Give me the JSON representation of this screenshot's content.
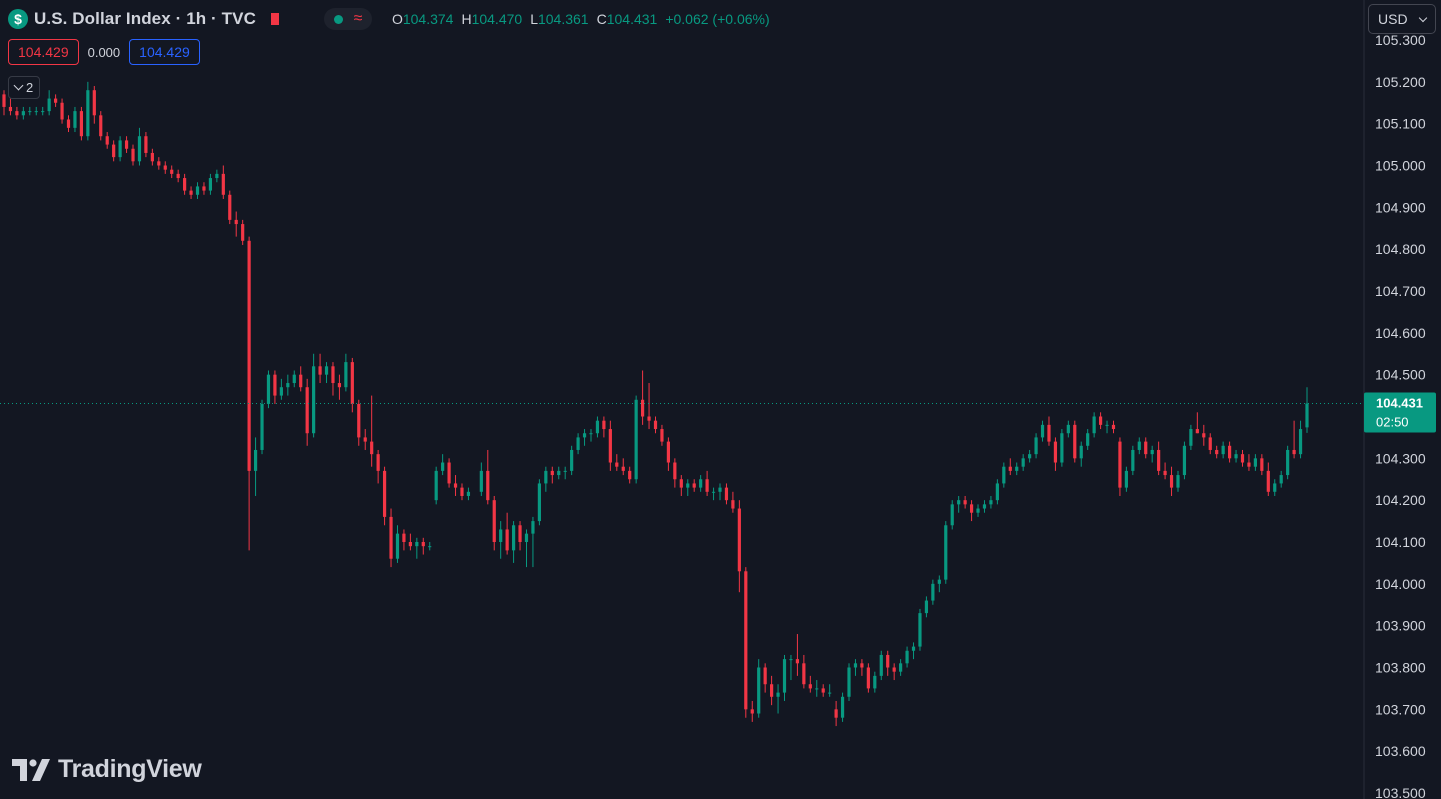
{
  "header": {
    "symbol_icon_text": "$",
    "title": "U.S. Dollar Index · 1h · TVC",
    "ohlc": [
      {
        "label": "O",
        "value": "104.374"
      },
      {
        "label": "H",
        "value": "104.470"
      },
      {
        "label": "L",
        "value": "104.361"
      },
      {
        "label": "C",
        "value": "104.431"
      },
      {
        "label": "",
        "value": "+0.062 (+0.06%)"
      }
    ],
    "approx_symbol": "≈"
  },
  "quotes": {
    "bid": "104.429",
    "spread": "0.000",
    "ask": "104.429"
  },
  "indicators_toggle": {
    "count": "2"
  },
  "currency": {
    "selected": "USD"
  },
  "branding": {
    "logo_text": "TradingView"
  },
  "colors": {
    "background": "#131722",
    "up": "#089981",
    "down": "#f23645",
    "axis_text": "#d1d4dc",
    "ask": "#2962ff"
  },
  "chart_data": {
    "type": "candlestick",
    "title": "U.S. Dollar Index · 1h · TVC",
    "ylim": [
      103.5,
      105.3
    ],
    "y_ticks": [
      "105.300",
      "105.200",
      "105.100",
      "105.000",
      "104.900",
      "104.800",
      "104.700",
      "104.600",
      "104.500",
      "104.400",
      "104.300",
      "104.200",
      "104.100",
      "104.000",
      "103.900",
      "103.800",
      "103.700",
      "103.600",
      "103.500"
    ],
    "last_price": {
      "value": 104.431,
      "label": "104.431",
      "countdown": "02:50"
    },
    "gap_after_index": 72,
    "candles": [
      [
        105.17,
        105.18,
        105.12,
        105.14
      ],
      [
        105.14,
        105.16,
        105.12,
        105.13
      ],
      [
        105.13,
        105.14,
        105.11,
        105.12
      ],
      [
        105.12,
        105.14,
        105.11,
        105.13
      ],
      [
        105.13,
        105.14,
        105.12,
        105.13
      ],
      [
        105.13,
        105.14,
        105.12,
        105.13
      ],
      [
        105.13,
        105.14,
        105.12,
        105.13
      ],
      [
        105.13,
        105.18,
        105.12,
        105.16
      ],
      [
        105.16,
        105.17,
        105.14,
        105.15
      ],
      [
        105.15,
        105.16,
        105.1,
        105.11
      ],
      [
        105.11,
        105.12,
        105.08,
        105.09
      ],
      [
        105.09,
        105.14,
        105.08,
        105.13
      ],
      [
        105.13,
        105.14,
        105.06,
        105.07
      ],
      [
        105.07,
        105.2,
        105.06,
        105.18
      ],
      [
        105.18,
        105.19,
        105.1,
        105.12
      ],
      [
        105.12,
        105.13,
        105.06,
        105.07
      ],
      [
        105.07,
        105.08,
        105.04,
        105.05
      ],
      [
        105.05,
        105.06,
        105.01,
        105.02
      ],
      [
        105.02,
        105.07,
        105.01,
        105.06
      ],
      [
        105.06,
        105.07,
        105.03,
        105.04
      ],
      [
        105.04,
        105.05,
        105.0,
        105.01
      ],
      [
        105.01,
        105.09,
        105.0,
        105.07
      ],
      [
        105.07,
        105.08,
        105.02,
        105.03
      ],
      [
        105.03,
        105.04,
        105.0,
        105.01
      ],
      [
        105.01,
        105.02,
        104.99,
        105.0
      ],
      [
        105.0,
        105.01,
        104.98,
        104.99
      ],
      [
        104.99,
        105.0,
        104.97,
        104.98
      ],
      [
        104.98,
        104.99,
        104.96,
        104.97
      ],
      [
        104.97,
        104.98,
        104.93,
        104.94
      ],
      [
        104.94,
        104.95,
        104.92,
        104.93
      ],
      [
        104.93,
        104.96,
        104.92,
        104.95
      ],
      [
        104.95,
        104.96,
        104.93,
        104.94
      ],
      [
        104.94,
        104.98,
        104.93,
        104.97
      ],
      [
        104.97,
        104.99,
        104.96,
        104.98
      ],
      [
        104.98,
        105.0,
        104.92,
        104.93
      ],
      [
        104.93,
        104.94,
        104.86,
        104.87
      ],
      [
        104.87,
        104.89,
        104.83,
        104.86
      ],
      [
        104.86,
        104.87,
        104.81,
        104.82
      ],
      [
        104.82,
        104.83,
        104.08,
        104.27
      ],
      [
        104.27,
        104.35,
        104.21,
        104.32
      ],
      [
        104.32,
        104.44,
        104.31,
        104.43
      ],
      [
        104.43,
        104.51,
        104.42,
        104.5
      ],
      [
        104.5,
        104.51,
        104.43,
        104.45
      ],
      [
        104.45,
        104.49,
        104.44,
        104.47
      ],
      [
        104.47,
        104.5,
        104.45,
        104.48
      ],
      [
        104.48,
        104.51,
        104.47,
        104.5
      ],
      [
        104.5,
        104.52,
        104.46,
        104.47
      ],
      [
        104.47,
        104.49,
        104.33,
        104.36
      ],
      [
        104.36,
        104.55,
        104.35,
        104.52
      ],
      [
        104.52,
        104.55,
        104.48,
        104.5
      ],
      [
        104.5,
        104.53,
        104.48,
        104.52
      ],
      [
        104.52,
        104.53,
        104.45,
        104.48
      ],
      [
        104.48,
        104.5,
        104.44,
        104.47
      ],
      [
        104.47,
        104.55,
        104.46,
        104.53
      ],
      [
        104.53,
        104.54,
        104.41,
        104.43
      ],
      [
        104.43,
        104.44,
        104.33,
        104.35
      ],
      [
        104.35,
        104.37,
        104.32,
        104.34
      ],
      [
        104.34,
        104.45,
        104.28,
        104.31
      ],
      [
        104.31,
        104.32,
        104.24,
        104.27
      ],
      [
        104.27,
        104.28,
        104.14,
        104.16
      ],
      [
        104.16,
        104.18,
        104.04,
        104.06
      ],
      [
        104.06,
        104.14,
        104.05,
        104.12
      ],
      [
        104.12,
        104.13,
        104.08,
        104.1
      ],
      [
        104.1,
        104.12,
        104.08,
        104.09
      ],
      [
        104.09,
        104.11,
        104.06,
        104.1
      ],
      [
        104.1,
        104.11,
        104.07,
        104.09
      ],
      [
        104.09,
        104.1,
        104.08,
        104.09
      ],
      [
        104.2,
        104.28,
        104.19,
        104.27
      ],
      [
        104.27,
        104.31,
        104.26,
        104.29
      ],
      [
        104.29,
        104.3,
        104.23,
        104.24
      ],
      [
        104.24,
        104.26,
        104.21,
        104.23
      ],
      [
        104.23,
        104.24,
        104.2,
        104.21
      ],
      [
        104.21,
        104.23,
        104.2,
        104.22
      ],
      [
        104.22,
        104.29,
        104.21,
        104.27
      ],
      [
        104.27,
        104.32,
        104.19,
        104.2
      ],
      [
        104.2,
        104.21,
        104.08,
        104.1
      ],
      [
        104.1,
        104.15,
        104.06,
        104.13
      ],
      [
        104.13,
        104.17,
        104.07,
        104.08
      ],
      [
        104.08,
        104.15,
        104.05,
        104.14
      ],
      [
        104.14,
        104.15,
        104.08,
        104.1
      ],
      [
        104.1,
        104.13,
        104.04,
        104.12
      ],
      [
        104.12,
        104.16,
        104.04,
        104.15
      ],
      [
        104.15,
        104.25,
        104.14,
        104.24
      ],
      [
        104.24,
        104.28,
        104.22,
        104.27
      ],
      [
        104.27,
        104.28,
        104.24,
        104.26
      ],
      [
        104.26,
        104.28,
        104.25,
        104.27
      ],
      [
        104.27,
        104.28,
        104.25,
        104.27
      ],
      [
        104.27,
        104.33,
        104.26,
        104.32
      ],
      [
        104.32,
        104.36,
        104.31,
        104.35
      ],
      [
        104.35,
        104.37,
        104.33,
        104.36
      ],
      [
        104.36,
        104.37,
        104.34,
        104.36
      ],
      [
        104.36,
        104.4,
        104.35,
        104.39
      ],
      [
        104.39,
        104.4,
        104.35,
        104.37
      ],
      [
        104.37,
        104.39,
        104.27,
        104.29
      ],
      [
        104.29,
        104.31,
        104.27,
        104.28
      ],
      [
        104.28,
        104.3,
        104.26,
        104.27
      ],
      [
        104.27,
        104.28,
        104.24,
        104.25
      ],
      [
        104.25,
        104.45,
        104.24,
        104.44
      ],
      [
        104.44,
        104.51,
        104.38,
        104.4
      ],
      [
        104.4,
        104.48,
        104.37,
        104.39
      ],
      [
        104.39,
        104.4,
        104.36,
        104.37
      ],
      [
        104.37,
        104.38,
        104.33,
        104.34
      ],
      [
        104.34,
        104.35,
        104.27,
        104.29
      ],
      [
        104.29,
        104.3,
        104.23,
        104.25
      ],
      [
        104.25,
        104.26,
        104.21,
        104.23
      ],
      [
        104.23,
        104.25,
        104.21,
        104.24
      ],
      [
        104.24,
        104.25,
        104.22,
        104.23
      ],
      [
        104.23,
        104.26,
        104.22,
        104.25
      ],
      [
        104.25,
        104.27,
        104.21,
        104.22
      ],
      [
        104.22,
        104.23,
        104.2,
        104.22
      ],
      [
        104.22,
        104.24,
        104.2,
        104.23
      ],
      [
        104.23,
        104.24,
        104.19,
        104.2
      ],
      [
        104.2,
        104.22,
        104.17,
        104.18
      ],
      [
        104.18,
        104.2,
        103.98,
        104.03
      ],
      [
        104.03,
        104.04,
        103.68,
        103.7
      ],
      [
        103.7,
        103.72,
        103.67,
        103.69
      ],
      [
        103.69,
        103.82,
        103.68,
        103.8
      ],
      [
        103.8,
        103.81,
        103.74,
        103.76
      ],
      [
        103.76,
        103.78,
        103.71,
        103.73
      ],
      [
        103.73,
        103.76,
        103.69,
        103.74
      ],
      [
        103.74,
        103.83,
        103.72,
        103.82
      ],
      [
        103.82,
        103.83,
        103.77,
        103.82
      ],
      [
        103.82,
        103.88,
        103.78,
        103.81
      ],
      [
        103.81,
        103.83,
        103.75,
        103.76
      ],
      [
        103.76,
        103.78,
        103.74,
        103.75
      ],
      [
        103.75,
        103.77,
        103.73,
        103.75
      ],
      [
        103.75,
        103.76,
        103.73,
        103.74
      ],
      [
        103.74,
        103.76,
        103.73,
        103.74
      ],
      [
        103.7,
        103.72,
        103.66,
        103.68
      ],
      [
        103.68,
        103.74,
        103.67,
        103.73
      ],
      [
        103.73,
        103.81,
        103.72,
        103.8
      ],
      [
        103.8,
        103.82,
        103.78,
        103.81
      ],
      [
        103.81,
        103.82,
        103.78,
        103.8
      ],
      [
        103.8,
        103.81,
        103.74,
        103.75
      ],
      [
        103.75,
        103.79,
        103.74,
        103.78
      ],
      [
        103.78,
        103.84,
        103.77,
        103.83
      ],
      [
        103.83,
        103.84,
        103.78,
        103.8
      ],
      [
        103.8,
        103.81,
        103.77,
        103.79
      ],
      [
        103.79,
        103.82,
        103.78,
        103.81
      ],
      [
        103.81,
        103.85,
        103.8,
        103.84
      ],
      [
        103.84,
        103.86,
        103.82,
        103.85
      ],
      [
        103.85,
        103.94,
        103.84,
        103.93
      ],
      [
        103.93,
        103.97,
        103.92,
        103.96
      ],
      [
        103.96,
        104.01,
        103.95,
        104.0
      ],
      [
        104.0,
        104.02,
        103.98,
        104.01
      ],
      [
        104.01,
        104.15,
        104.0,
        104.14
      ],
      [
        104.14,
        104.2,
        104.13,
        104.19
      ],
      [
        104.19,
        104.21,
        104.17,
        104.2
      ],
      [
        104.2,
        104.21,
        104.18,
        104.19
      ],
      [
        104.19,
        104.2,
        104.15,
        104.17
      ],
      [
        104.17,
        104.19,
        104.16,
        104.18
      ],
      [
        104.18,
        104.2,
        104.17,
        104.19
      ],
      [
        104.19,
        104.21,
        104.18,
        104.2
      ],
      [
        104.2,
        104.25,
        104.19,
        104.24
      ],
      [
        104.24,
        104.29,
        104.23,
        104.28
      ],
      [
        104.28,
        104.3,
        104.26,
        104.27
      ],
      [
        104.27,
        104.29,
        104.26,
        104.28
      ],
      [
        104.28,
        104.31,
        104.27,
        104.3
      ],
      [
        104.3,
        104.32,
        104.29,
        104.31
      ],
      [
        104.31,
        104.36,
        104.3,
        104.35
      ],
      [
        104.35,
        104.39,
        104.34,
        104.38
      ],
      [
        104.38,
        104.4,
        104.33,
        104.34
      ],
      [
        104.34,
        104.35,
        104.27,
        104.29
      ],
      [
        104.29,
        104.37,
        104.28,
        104.36
      ],
      [
        104.36,
        104.39,
        104.35,
        104.38
      ],
      [
        104.38,
        104.39,
        104.29,
        104.3
      ],
      [
        104.3,
        104.34,
        104.28,
        104.33
      ],
      [
        104.33,
        104.37,
        104.32,
        104.36
      ],
      [
        104.36,
        104.41,
        104.35,
        104.4
      ],
      [
        104.4,
        104.41,
        104.37,
        104.38
      ],
      [
        104.38,
        104.39,
        104.36,
        104.38
      ],
      [
        104.38,
        104.39,
        104.36,
        104.37
      ],
      [
        104.34,
        104.35,
        104.21,
        104.23
      ],
      [
        104.23,
        104.28,
        104.22,
        104.27
      ],
      [
        104.27,
        104.33,
        104.26,
        104.32
      ],
      [
        104.32,
        104.35,
        104.31,
        104.34
      ],
      [
        104.34,
        104.35,
        104.3,
        104.31
      ],
      [
        104.31,
        104.33,
        104.29,
        104.32
      ],
      [
        104.32,
        104.34,
        104.26,
        104.27
      ],
      [
        104.27,
        104.29,
        104.25,
        104.26
      ],
      [
        104.26,
        104.28,
        104.21,
        104.23
      ],
      [
        104.23,
        104.27,
        104.22,
        104.26
      ],
      [
        104.26,
        104.34,
        104.25,
        104.33
      ],
      [
        104.33,
        104.38,
        104.32,
        104.37
      ],
      [
        104.37,
        104.41,
        104.36,
        104.36
      ],
      [
        104.36,
        104.38,
        104.33,
        104.35
      ],
      [
        104.35,
        104.36,
        104.31,
        104.32
      ],
      [
        104.32,
        104.33,
        104.3,
        104.31
      ],
      [
        104.31,
        104.34,
        104.3,
        104.33
      ],
      [
        104.33,
        104.34,
        104.29,
        104.3
      ],
      [
        104.3,
        104.32,
        104.29,
        104.31
      ],
      [
        104.31,
        104.32,
        104.28,
        104.29
      ],
      [
        104.29,
        104.31,
        104.27,
        104.28
      ],
      [
        104.28,
        104.31,
        104.27,
        104.3
      ],
      [
        104.3,
        104.31,
        104.26,
        104.27
      ],
      [
        104.27,
        104.29,
        104.21,
        104.22
      ],
      [
        104.22,
        104.25,
        104.21,
        104.24
      ],
      [
        104.24,
        104.27,
        104.23,
        104.26
      ],
      [
        104.26,
        104.33,
        104.25,
        104.32
      ],
      [
        104.32,
        104.39,
        104.3,
        104.31
      ],
      [
        104.31,
        104.39,
        104.3,
        104.37
      ],
      [
        104.374,
        104.47,
        104.361,
        104.431
      ]
    ]
  }
}
